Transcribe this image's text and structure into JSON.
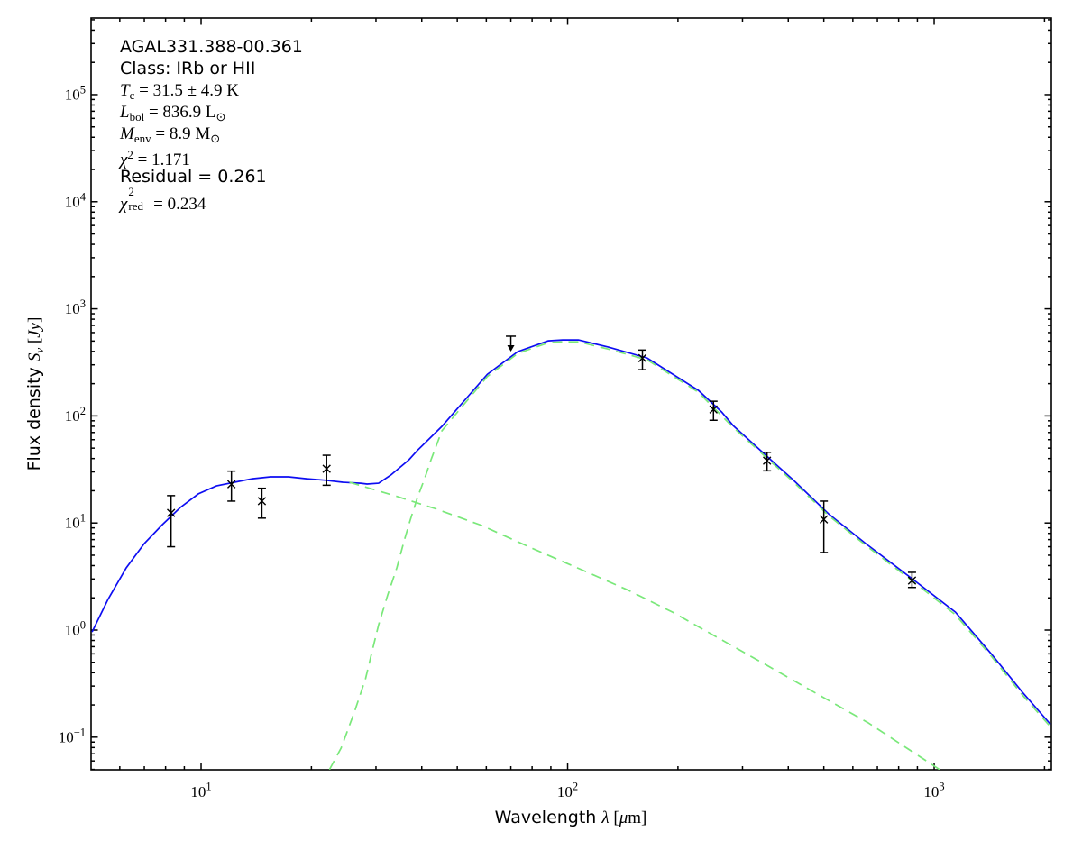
{
  "chart_data": {
    "type": "line+scatter",
    "title": "",
    "annotation_lines": [
      {
        "name": "source-name",
        "segments": [
          {
            "s": "sans",
            "t": "AGAL331.388-00.361"
          }
        ]
      },
      {
        "name": "class-line",
        "segments": [
          {
            "s": "sans",
            "t": "Class: IRb or HII"
          }
        ]
      },
      {
        "name": "temperature",
        "segments": [
          {
            "s": "i",
            "t": "T"
          },
          {
            "s": "sub",
            "t": "c"
          },
          {
            "s": "n",
            "t": " = 31.5 ± 4.9 K"
          }
        ]
      },
      {
        "name": "luminosity",
        "segments": [
          {
            "s": "i",
            "t": "L"
          },
          {
            "s": "sub",
            "t": "bol"
          },
          {
            "s": "n",
            "t": " = 836.9 L"
          },
          {
            "s": "sub",
            "t": "⊙"
          }
        ]
      },
      {
        "name": "envelope-mass",
        "segments": [
          {
            "s": "i",
            "t": "M"
          },
          {
            "s": "sub",
            "t": "env"
          },
          {
            "s": "n",
            "t": " = 8.9 M"
          },
          {
            "s": "sub",
            "t": "⊙"
          }
        ]
      },
      {
        "name": "chi-square",
        "segments": [
          {
            "s": "i",
            "t": "χ"
          },
          {
            "s": "sup",
            "t": "2"
          },
          {
            "s": "n",
            "t": " = 1.171"
          }
        ]
      },
      {
        "name": "residual",
        "segments": [
          {
            "s": "sans",
            "t": "Residual = 0.261"
          }
        ]
      },
      {
        "name": "chi-square-reduced",
        "segments": [
          {
            "s": "i",
            "t": "χ"
          },
          {
            "s": "stack",
            "sup": "2",
            "sub": "red",
            "w": 24
          },
          {
            "s": "n",
            "t": " = 0.234"
          }
        ]
      }
    ],
    "xlabel_segments": [
      {
        "s": "sans",
        "t": "Wavelength "
      },
      {
        "s": "i",
        "t": "λ"
      },
      {
        "s": "n",
        "t": " ["
      },
      {
        "s": "i",
        "t": "μ"
      },
      {
        "s": "n",
        "t": "m]"
      }
    ],
    "ylabel_segments": [
      {
        "s": "sans",
        "t": "Flux density "
      },
      {
        "s": "i",
        "t": "S"
      },
      {
        "s": "subi",
        "t": "ν"
      },
      {
        "s": "n",
        "t": " ["
      },
      {
        "s": "i",
        "t": "Jy"
      },
      {
        "s": "n",
        "t": "]"
      }
    ],
    "x_axis": {
      "scale": "log",
      "min": 5.01,
      "max": 2088,
      "major_ticks": [
        10,
        100,
        1000
      ],
      "tick_labels": [
        {
          "base": "10",
          "exp": "1"
        },
        {
          "base": "10",
          "exp": "2"
        },
        {
          "base": "10",
          "exp": "3"
        }
      ]
    },
    "y_axis": {
      "scale": "log",
      "min": 0.0496,
      "max": 519000,
      "major_ticks": [
        100000,
        10000,
        1000,
        100,
        10,
        1,
        0.1
      ],
      "tick_labels": [
        {
          "base": "10",
          "exp": "5"
        },
        {
          "base": "10",
          "exp": "4"
        },
        {
          "base": "10",
          "exp": "3"
        },
        {
          "base": "10",
          "exp": "2"
        },
        {
          "base": "10",
          "exp": "1"
        },
        {
          "base": "10",
          "exp": "0"
        },
        {
          "base": "10",
          "exp": "−1"
        }
      ]
    },
    "colors": {
      "fit_total": "#0d0df2",
      "fit_components": "#7ae87a",
      "data_points": "#000000",
      "frame": "#000000"
    },
    "series": [
      {
        "name": "total-fit",
        "style": "solid",
        "color_key": "fit_total",
        "points": [
          [
            5.04,
            0.96
          ],
          [
            5.57,
            1.93
          ],
          [
            6.25,
            3.81
          ],
          [
            7.0,
            6.43
          ],
          [
            7.84,
            9.66
          ],
          [
            8.78,
            13.96
          ],
          [
            9.83,
            18.7
          ],
          [
            11.01,
            22.2
          ],
          [
            12.33,
            24.0
          ],
          [
            13.81,
            25.9
          ],
          [
            15.47,
            27.0
          ],
          [
            17.32,
            27.0
          ],
          [
            19.4,
            25.9
          ],
          [
            21.73,
            25.1
          ],
          [
            24.34,
            24.0
          ],
          [
            27.26,
            23.5
          ],
          [
            28.37,
            23.1
          ],
          [
            30.5,
            23.5
          ],
          [
            32.9,
            28.0
          ],
          [
            36.9,
            38.9
          ],
          [
            38.9,
            47.5
          ],
          [
            45.4,
            79.9
          ],
          [
            52.4,
            140
          ],
          [
            60.4,
            245
          ],
          [
            73.1,
            398
          ],
          [
            88.5,
            502
          ],
          [
            96.9,
            512
          ],
          [
            107,
            512
          ],
          [
            128.9,
            440
          ],
          [
            164.8,
            348
          ],
          [
            227.5,
            173
          ],
          [
            263.3,
            108.6
          ],
          [
            282.8,
            81.2
          ],
          [
            358.5,
            38.9
          ],
          [
            413.6,
            25.0
          ],
          [
            514.5,
            12.2
          ],
          [
            650.5,
            6.43
          ],
          [
            893.5,
            2.82
          ],
          [
            1143,
            1.47
          ],
          [
            1432,
            0.6
          ],
          [
            1742,
            0.262
          ],
          [
            2076,
            0.132
          ]
        ]
      },
      {
        "name": "warm-component-fit",
        "style": "dashed",
        "color_key": "fit_components",
        "points": [
          [
            25.4,
            24.0
          ],
          [
            28.8,
            21.1
          ],
          [
            34.2,
            17.7
          ],
          [
            43.3,
            13.7
          ],
          [
            57.9,
            9.57
          ],
          [
            81.5,
            5.65
          ],
          [
            110.4,
            3.6
          ],
          [
            146.2,
            2.36
          ],
          [
            194.7,
            1.45
          ],
          [
            263.3,
            0.81
          ],
          [
            356,
            0.453
          ],
          [
            489,
            0.244
          ],
          [
            659,
            0.137
          ],
          [
            1035,
            0.0498
          ]
        ]
      },
      {
        "name": "cold-component-fit",
        "style": "dashed",
        "color_key": "fit_components",
        "points": [
          [
            22.4,
            0.0498
          ],
          [
            24.1,
            0.0792
          ],
          [
            26.2,
            0.172
          ],
          [
            28.1,
            0.351
          ],
          [
            29.3,
            0.639
          ],
          [
            30.5,
            1.12
          ],
          [
            32.3,
            2.13
          ],
          [
            34.2,
            3.81
          ],
          [
            35.8,
            6.81
          ],
          [
            37.2,
            10.6
          ],
          [
            38.9,
            17.1
          ],
          [
            40.8,
            26.5
          ],
          [
            42.4,
            38.9
          ],
          [
            45.4,
            72.6
          ],
          [
            52.4,
            130.6
          ],
          [
            60.4,
            233
          ],
          [
            73.1,
            383
          ],
          [
            88.5,
            482
          ],
          [
            96.9,
            492
          ],
          [
            107,
            492
          ],
          [
            128.9,
            421
          ],
          [
            164.8,
            334
          ],
          [
            227.5,
            166
          ],
          [
            282.8,
            78.1
          ],
          [
            358.5,
            37.4
          ],
          [
            413.6,
            24.0
          ],
          [
            514.5,
            11.8
          ],
          [
            650.5,
            6.18
          ],
          [
            893.5,
            2.7
          ],
          [
            1143,
            1.39
          ],
          [
            1432,
            0.57
          ],
          [
            1742,
            0.247
          ],
          [
            2076,
            0.125
          ]
        ]
      }
    ],
    "data_points": [
      {
        "wavelength_um": 8.28,
        "flux_jy": 12.4,
        "err_plus": 5.6,
        "err_minus": 6.4,
        "upper_limit": false
      },
      {
        "wavelength_um": 12.1,
        "flux_jy": 23.0,
        "err_plus": 7.5,
        "err_minus": 7.0,
        "upper_limit": false
      },
      {
        "wavelength_um": 14.65,
        "flux_jy": 16.0,
        "err_plus": 5.1,
        "err_minus": 4.9,
        "upper_limit": false
      },
      {
        "wavelength_um": 22.0,
        "flux_jy": 32.1,
        "err_plus": 10.8,
        "err_minus": 9.6,
        "upper_limit": false
      },
      {
        "wavelength_um": 70.0,
        "flux_jy": 555,
        "err_plus": 0,
        "err_minus": 0,
        "upper_limit": true
      },
      {
        "wavelength_um": 160.0,
        "flux_jy": 346,
        "err_plus": 66,
        "err_minus": 76,
        "upper_limit": false
      },
      {
        "wavelength_um": 250.0,
        "flux_jy": 115,
        "err_plus": 22,
        "err_minus": 24,
        "upper_limit": false
      },
      {
        "wavelength_um": 350.0,
        "flux_jy": 38.2,
        "err_plus": 7.5,
        "err_minus": 7.5,
        "upper_limit": false
      },
      {
        "wavelength_um": 500.0,
        "flux_jy": 10.8,
        "err_plus": 5.2,
        "err_minus": 5.5,
        "upper_limit": false
      },
      {
        "wavelength_um": 870.0,
        "flux_jy": 2.9,
        "err_plus": 0.56,
        "err_minus": 0.4,
        "upper_limit": false
      }
    ]
  }
}
